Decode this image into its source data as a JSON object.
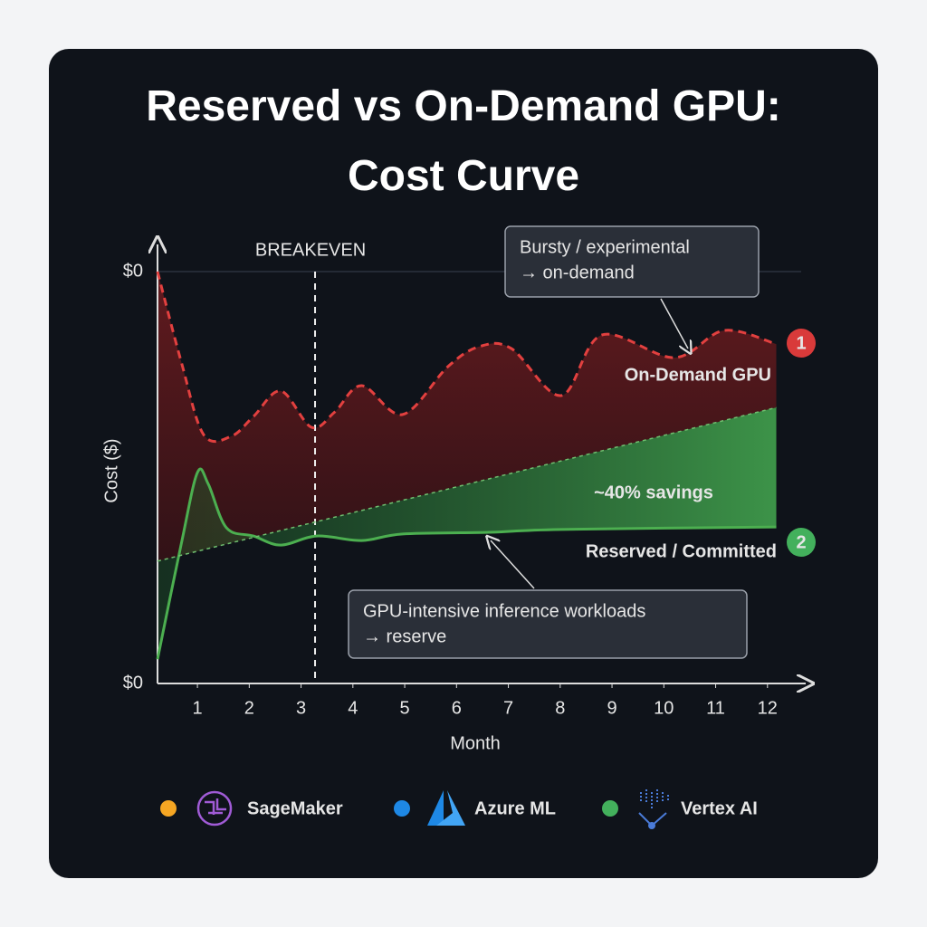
{
  "chart_data": {
    "type": "line",
    "title": "Reserved vs On-Demand GPU: Cost Curve",
    "x_label": "Month",
    "y_label": "Cost ($)",
    "y_end_labels": [
      "$0",
      "$0"
    ],
    "xlim": [
      0.23,
      12.65
    ],
    "ylim": [
      0,
      100
    ],
    "xticks": [
      1,
      2,
      3,
      4,
      5,
      6,
      7,
      8,
      9,
      10,
      11,
      12
    ],
    "series": [
      {
        "name": "On-Demand GPU",
        "color": "#e2403f",
        "style": "dashed",
        "badge": "1",
        "x": [
          0.23,
          0.69,
          1.12,
          1.65,
          2.08,
          2.61,
          3.2,
          3.65,
          4.17,
          4.96,
          5.83,
          6.44,
          7.06,
          8.02,
          8.8,
          10.2,
          11.16,
          12.17
        ],
        "values": [
          100,
          78,
          60.4,
          60,
          64.8,
          71,
          62.2,
          65.9,
          72.3,
          65.3,
          76.9,
          81.8,
          81.3,
          69.9,
          84.6,
          79.1,
          85.7,
          82.4
        ]
      },
      {
        "name": "Reserved / Committed",
        "color": "#4caf50",
        "style": "solid",
        "badge": "2",
        "x": [
          0.23,
          0.69,
          1.0,
          1.21,
          1.56,
          2.08,
          2.61,
          3.3,
          4.17,
          4.96,
          6.62,
          8.02,
          12.17
        ],
        "values": [
          5.9,
          34,
          51.2,
          48.4,
          37.8,
          35.8,
          33.6,
          35.8,
          34.7,
          36.3,
          36.7,
          37.4,
          38
        ]
      },
      {
        "color": "#6fbf6f",
        "style": "thin-dashed",
        "x": [
          0.23,
          12.17
        ],
        "values": [
          29.7,
          67
        ]
      }
    ],
    "breakeven": {
      "x": 3.27,
      "label": "BREAKEVEN"
    },
    "savings_label": "~40% savings",
    "callouts": [
      {
        "lines": [
          "Bursty / experimental",
          "→ on-demand"
        ]
      },
      {
        "lines": [
          "GPU-intensive inference workloads",
          "→ reserve"
        ]
      }
    ],
    "legend": [
      {
        "name": "SageMaker",
        "color": "#f5a623"
      },
      {
        "name": "Azure ML",
        "color": "#1e88e5"
      },
      {
        "name": "Vertex AI",
        "color": "#43b05c"
      }
    ]
  }
}
